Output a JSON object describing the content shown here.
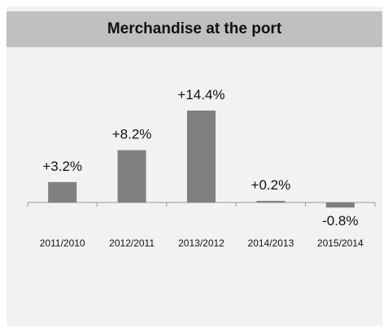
{
  "chart_data": {
    "type": "bar",
    "title": "Merchandise at the port",
    "categories": [
      "2011/2010",
      "2012/2011",
      "2013/2012",
      "2014/2013",
      "2015/2014"
    ],
    "values": [
      3.2,
      8.2,
      14.4,
      0.2,
      -0.8
    ],
    "data_labels": [
      "+3.2%",
      "+8.2%",
      "+14.4%",
      "+0.2%",
      "-0.8%"
    ],
    "unit": "%",
    "xlabel": "",
    "ylabel": "",
    "grid": false,
    "legend": "none",
    "colors": {
      "bar": "#808080",
      "axis": "#999999",
      "title_bar": "#c0c0c0",
      "panel": "#f2f2f2"
    }
  }
}
